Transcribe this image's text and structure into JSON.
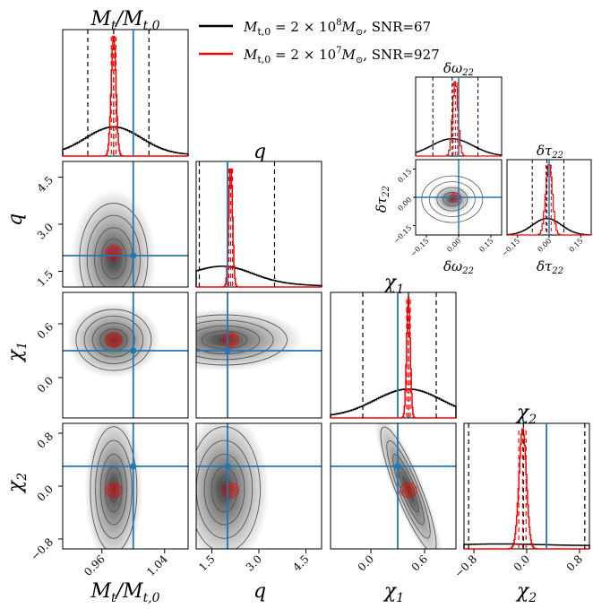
{
  "legend": [
    {
      "label": "M_t,0 = 2 × 10^8 M_⊙, SNR=67",
      "color": "#000000",
      "parts": [
        "M",
        "t,0",
        " = 2 × 10",
        "8",
        "M",
        "⊙",
        ", SNR=67"
      ]
    },
    {
      "label": "M_t,0 = 2 × 10^7 M_⊙, SNR=927",
      "color": "#ff0000",
      "parts": [
        "M",
        "t,0",
        " = 2 × 10",
        "7",
        "M",
        "⊙",
        ", SNR=927"
      ]
    }
  ],
  "colors": {
    "black_run": "#000000",
    "red_run": "#ff0000",
    "truth": "#1f77b4"
  },
  "main_labels": {
    "m": {
      "base": "M",
      "sub": "t",
      "den_base": "M",
      "den_sub": "t,0"
    },
    "q": "q",
    "chi1": {
      "base": "χ",
      "sub": "1"
    },
    "chi2": {
      "base": "χ",
      "sub": "2"
    }
  },
  "inset_labels": {
    "omega": {
      "base": "δω",
      "sub": "22"
    },
    "tau": {
      "base": "δτ",
      "sub": "22"
    }
  },
  "chart_data": {
    "type": "corner",
    "parameters": [
      "M_t/M_t,0",
      "q",
      "χ_1",
      "χ_2"
    ],
    "truths": {
      "M_t/M_t,0": 1.0,
      "q": 2.0,
      "χ_1": 0.3,
      "χ_2": 0.3
    },
    "ranges": {
      "M_t/M_t,0": [
        0.91,
        1.07
      ],
      "q": [
        1.0,
        5.0
      ],
      "χ_1": [
        -0.45,
        0.95
      ],
      "χ_2": [
        -0.95,
        0.95
      ]
    },
    "ticks": {
      "M_t/M_t,0": [
        "0.96",
        "1.04"
      ],
      "q": [
        "1.5",
        "3.0",
        "4.5"
      ],
      "χ_1": [
        "0.0",
        "0.6"
      ],
      "χ_2": [
        "−0.8",
        "0.0",
        "0.8"
      ]
    },
    "black_run_peaks": {
      "M_t/M_t,0": 0.975,
      "q": 1.9,
      "χ_1": 0.42,
      "χ_2": -0.05
    },
    "red_run_peaks": {
      "M_t/M_t,0": 0.975,
      "q": 2.1,
      "χ_1": 0.42,
      "χ_2": -0.06
    },
    "black_run_quantiles": {
      "M_t/M_t,0": [
        0.942,
        0.975,
        1.02
      ],
      "q": [
        1.1,
        2.0,
        3.5
      ],
      "χ_1": [
        -0.09,
        0.42,
        0.73
      ],
      "χ_2": [
        -0.88,
        -0.05,
        0.88
      ]
    },
    "red_run_quantiles": {
      "M_t/M_t,0": [
        0.972,
        0.975,
        0.978
      ],
      "q": [
        2.04,
        2.1,
        2.16
      ],
      "χ_1": [
        0.4,
        0.42,
        0.44
      ],
      "χ_2": [
        -0.12,
        -0.06,
        -0.01
      ]
    },
    "inset": {
      "parameters": [
        "δω_22",
        "δτ_22"
      ],
      "truths": {
        "δω_22": 0.0,
        "δτ_22": 0.0
      },
      "ranges": {
        "δω_22": [
          -0.2,
          0.2
        ],
        "δτ_22": [
          -0.2,
          0.2
        ]
      },
      "ticks": {
        "δω_22": [
          "−0.15",
          "0.00",
          "0.15"
        ],
        "δτ_22": [
          "−0.15",
          "0.00",
          "0.15"
        ]
      },
      "black_run_quantiles": {
        "δω_22": [
          -0.12,
          -0.03,
          0.09
        ],
        "δτ_22": [
          -0.08,
          -0.01,
          0.07
        ]
      },
      "red_run_quantiles": {
        "δω_22": [
          -0.025,
          -0.015,
          -0.005
        ],
        "δτ_22": [
          -0.015,
          0.0,
          0.01
        ]
      }
    }
  }
}
